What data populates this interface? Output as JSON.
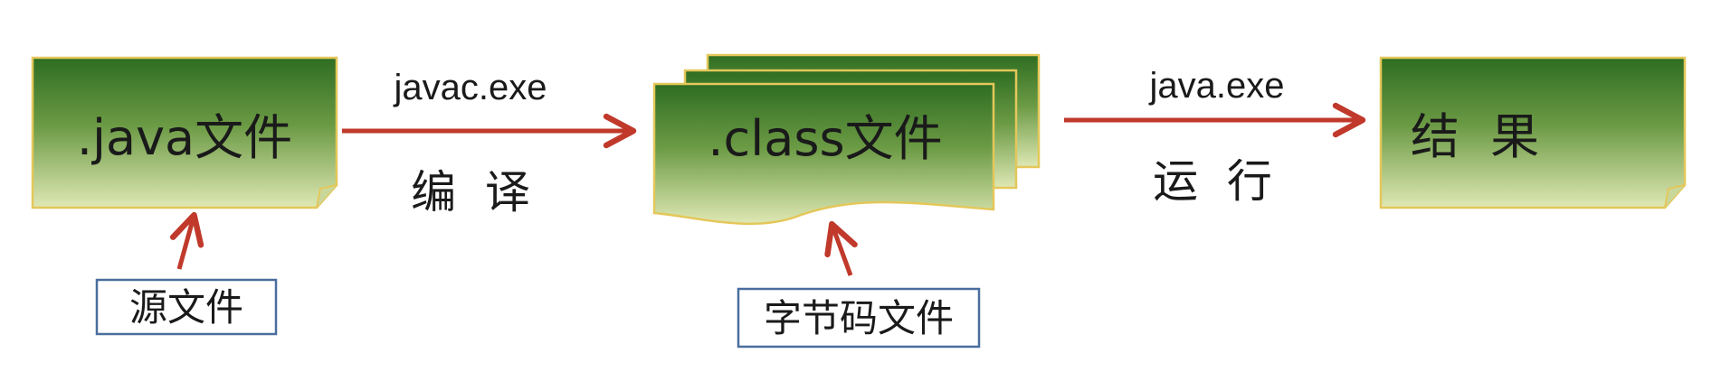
{
  "nodes": {
    "source": {
      "label": ".java文件"
    },
    "bytecode": {
      "label": ".class文件"
    },
    "result": {
      "label": "结  果"
    }
  },
  "edges": {
    "compile": {
      "command": "javac.exe",
      "action": "编  译"
    },
    "run": {
      "command": "java.exe",
      "action": "运  行"
    }
  },
  "callouts": {
    "source": {
      "label": "源文件"
    },
    "bytecode": {
      "label": "字节码文件"
    }
  },
  "colors": {
    "doc_gradient_top": "#2e6d22",
    "doc_gradient_mid": "#6b9a44",
    "doc_gradient_bottom": "#dfe8b4",
    "doc_border": "#e4c75a",
    "arrow": "#c0392b",
    "callout_border": "#4a6e9e"
  }
}
